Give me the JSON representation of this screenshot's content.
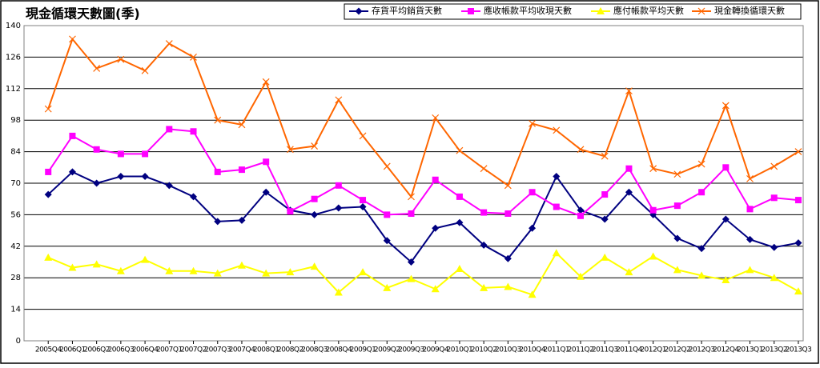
{
  "chart_data": {
    "type": "line",
    "title": "現金循環天數圖(季)",
    "categories": [
      "2005Q4",
      "2006Q1",
      "2006Q2",
      "2006Q3",
      "2006Q4",
      "2007Q1",
      "2007Q2",
      "2007Q3",
      "2007Q4",
      "2008Q1",
      "2008Q2",
      "2008Q3",
      "2008Q4",
      "2009Q1",
      "2009Q2",
      "2009Q3",
      "2009Q4",
      "2010Q1",
      "2010Q2",
      "2010Q3",
      "2010Q4",
      "2011Q1",
      "2011Q2",
      "2011Q3",
      "2011Q4",
      "2012Q1",
      "2012Q2",
      "2012Q3",
      "2012Q4",
      "2013Q1",
      "2013Q2",
      "2013Q3"
    ],
    "series": [
      {
        "name": "存貨平均銷貨天數",
        "color": "#000080",
        "marker": "diamond",
        "values": [
          65,
          75,
          70,
          73,
          73,
          69,
          64,
          53,
          53.5,
          66,
          58,
          56,
          59,
          59.5,
          44.5,
          35,
          50,
          52.5,
          42.5,
          36.5,
          50,
          73,
          58,
          54,
          66,
          56,
          45.5,
          41,
          54,
          45,
          41.5,
          43.5
        ]
      },
      {
        "name": "應收帳款平均收現天數",
        "color": "#ff00ff",
        "marker": "square",
        "values": [
          75,
          91,
          85,
          83,
          83,
          94,
          93,
          75,
          76,
          79.5,
          57.5,
          63,
          69,
          62.5,
          56,
          56.5,
          71.5,
          64,
          57,
          56.5,
          66,
          59.5,
          55.5,
          65,
          76.5,
          58,
          60,
          66,
          77,
          58.5,
          63.5,
          62.5
        ]
      },
      {
        "name": "應付帳款平均天數",
        "color": "#ffff00",
        "marker": "triangle",
        "values": [
          37,
          32.5,
          34,
          31,
          36,
          31,
          31,
          30,
          33.5,
          30,
          30.5,
          33,
          21.5,
          30.5,
          23.5,
          27.5,
          23,
          32,
          23.5,
          24,
          20.5,
          39,
          28.5,
          37,
          30.5,
          37.5,
          31.5,
          29,
          27,
          31.5,
          28,
          22
        ]
      },
      {
        "name": "現金轉換循環天數",
        "color": "#ff6600",
        "marker": "x",
        "values": [
          103,
          134,
          121,
          125,
          120,
          132,
          126,
          98,
          96,
          115,
          85,
          86.5,
          107,
          91,
          77.5,
          64,
          99,
          84.5,
          76.5,
          69,
          96.5,
          93.5,
          85,
          82,
          111,
          76.5,
          74,
          78.5,
          104.5,
          72,
          77.5,
          84
        ]
      }
    ],
    "ylim": [
      0,
      140
    ],
    "yticks": [
      0,
      14,
      28,
      42,
      56,
      70,
      84,
      98,
      112,
      126,
      140
    ],
    "grid": true
  }
}
